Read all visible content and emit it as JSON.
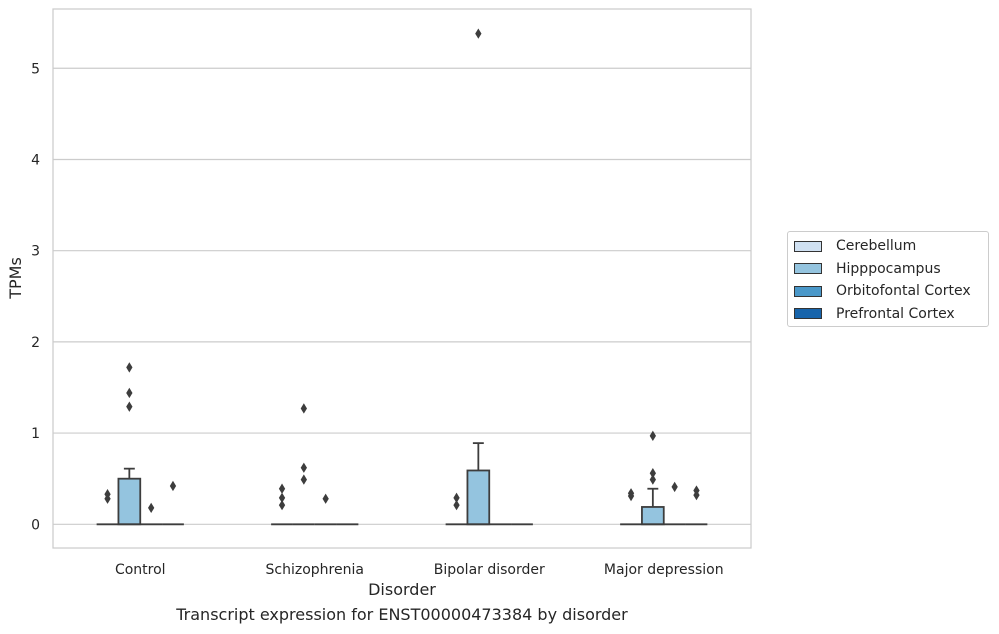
{
  "chart_data": {
    "type": "box",
    "title": "",
    "caption": "Transcript expression for ENST00000473384 by disorder",
    "xlabel": "Disorder",
    "ylabel": "TPMs",
    "ylim": [
      -0.26,
      5.65
    ],
    "yticks": [
      0,
      1,
      2,
      3,
      4,
      5
    ],
    "grid": "horizontal",
    "legend_placement": "outside-right",
    "categories": [
      "Control",
      "Schizophrenia",
      "Bipolar disorder",
      "Major depression"
    ],
    "series": [
      {
        "name": "Cerebellum",
        "color": "#d0e1f2",
        "boxes": [
          {
            "q1": 0,
            "median": 0,
            "q3": 0,
            "whisker_low": 0,
            "whisker_high": 0,
            "outliers": [
              0.28,
              0.33
            ]
          },
          {
            "q1": 0,
            "median": 0,
            "q3": 0,
            "whisker_low": 0,
            "whisker_high": 0,
            "outliers": [
              0.21,
              0.29,
              0.39
            ]
          },
          {
            "q1": 0,
            "median": 0,
            "q3": 0,
            "whisker_low": 0,
            "whisker_high": 0,
            "outliers": [
              0.21,
              0.29
            ]
          },
          {
            "q1": 0,
            "median": 0,
            "q3": 0,
            "whisker_low": 0,
            "whisker_high": 0,
            "outliers": [
              0.31,
              0.34
            ]
          }
        ]
      },
      {
        "name": "Hipppocampus",
        "color": "#94c4df",
        "boxes": [
          {
            "q1": 0,
            "median": 0,
            "q3": 0.5,
            "whisker_low": 0,
            "whisker_high": 0.61,
            "outliers": [
              1.29,
              1.44,
              1.72
            ]
          },
          {
            "q1": 0,
            "median": 0,
            "q3": 0,
            "whisker_low": 0,
            "whisker_high": 0,
            "outliers": [
              0.49,
              0.62,
              1.27
            ]
          },
          {
            "q1": 0,
            "median": 0,
            "q3": 0.59,
            "whisker_low": 0,
            "whisker_high": 0.89,
            "outliers": [
              5.38
            ]
          },
          {
            "q1": 0,
            "median": 0,
            "q3": 0.19,
            "whisker_low": 0,
            "whisker_high": 0.39,
            "outliers": [
              0.49,
              0.56,
              0.97
            ]
          }
        ]
      },
      {
        "name": "Orbitofontal Cortex",
        "color": "#4a98c9",
        "boxes": [
          {
            "q1": 0,
            "median": 0,
            "q3": 0,
            "whisker_low": 0,
            "whisker_high": 0,
            "outliers": [
              0.18
            ]
          },
          {
            "q1": 0,
            "median": 0,
            "q3": 0,
            "whisker_low": 0,
            "whisker_high": 0,
            "outliers": [
              0.28
            ]
          },
          {
            "q1": 0,
            "median": 0,
            "q3": 0,
            "whisker_low": 0,
            "whisker_high": 0,
            "outliers": []
          },
          {
            "q1": 0,
            "median": 0,
            "q3": 0,
            "whisker_low": 0,
            "whisker_high": 0,
            "outliers": [
              0.41
            ]
          }
        ]
      },
      {
        "name": "Prefrontal Cortex",
        "color": "#1764ab",
        "boxes": [
          {
            "q1": 0,
            "median": 0,
            "q3": 0,
            "whisker_low": 0,
            "whisker_high": 0,
            "outliers": [
              0.42
            ]
          },
          {
            "q1": 0,
            "median": 0,
            "q3": 0,
            "whisker_low": 0,
            "whisker_high": 0,
            "outliers": []
          },
          {
            "q1": 0,
            "median": 0,
            "q3": 0,
            "whisker_low": 0,
            "whisker_high": 0,
            "outliers": []
          },
          {
            "q1": 0,
            "median": 0,
            "q3": 0,
            "whisker_low": 0,
            "whisker_high": 0,
            "outliers": [
              0.32,
              0.37
            ]
          }
        ]
      }
    ]
  }
}
